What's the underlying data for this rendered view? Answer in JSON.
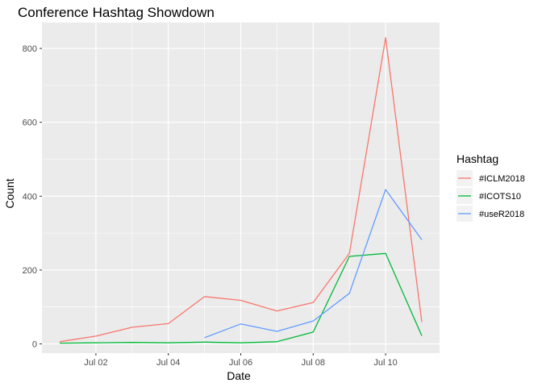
{
  "chart_data": {
    "type": "line",
    "title": "Conference Hashtag Showdown",
    "xlabel": "Date",
    "ylabel": "Count",
    "legend_title": "Hashtag",
    "legend_position": "right",
    "grid": true,
    "x": [
      "Jul 01",
      "Jul 02",
      "Jul 03",
      "Jul 04",
      "Jul 05",
      "Jul 06",
      "Jul 07",
      "Jul 08",
      "Jul 09",
      "Jul 10",
      "Jul 11"
    ],
    "x_ticks": [
      "Jul 02",
      "Jul 04",
      "Jul 06",
      "Jul 08",
      "Jul 10"
    ],
    "y_ticks": [
      0,
      200,
      400,
      600,
      800
    ],
    "ylim": [
      -25,
      870
    ],
    "series": [
      {
        "name": "#ICLM2018",
        "color": "#F8766D",
        "values": [
          6,
          21,
          45,
          55,
          128,
          118,
          89,
          112,
          245,
          829,
          59
        ]
      },
      {
        "name": "#ICOTS10",
        "color": "#00BA38",
        "values": [
          2,
          3,
          4,
          3,
          5,
          3,
          6,
          32,
          237,
          245,
          22
        ]
      },
      {
        "name": "#useR2018",
        "color": "#619CFF",
        "values": [
          null,
          null,
          null,
          null,
          17,
          54,
          34,
          62,
          137,
          418,
          282
        ]
      }
    ]
  }
}
